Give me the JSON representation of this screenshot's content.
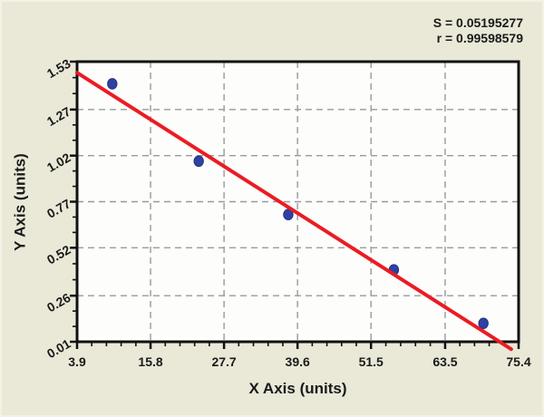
{
  "stats_annotation": {
    "s_line": "S = 0.05195277",
    "r_line": "r = 0.99598579"
  },
  "chart_data": {
    "type": "scatter",
    "title": "",
    "xlabel": "X Axis (units)",
    "ylabel": "Y Axis (units)",
    "xlim": [
      3.9,
      75.4
    ],
    "ylim": [
      0.01,
      1.53
    ],
    "x_ticks": [
      3.9,
      15.8,
      27.7,
      39.6,
      51.5,
      63.5,
      75.4
    ],
    "y_ticks": [
      0.01,
      0.26,
      0.52,
      0.77,
      1.02,
      1.27,
      1.53
    ],
    "x_minor_subdivisions": 5,
    "y_minor_subdivisions": 3,
    "grid": "dashed",
    "legend": "none",
    "stats": [
      "S = 0.05195277",
      "r = 0.99598579"
    ],
    "points": [
      {
        "x": 9.6,
        "y": 1.41
      },
      {
        "x": 23.6,
        "y": 0.99
      },
      {
        "x": 38.1,
        "y": 0.7
      },
      {
        "x": 55.2,
        "y": 0.4
      },
      {
        "x": 69.7,
        "y": 0.11
      }
    ],
    "regression_line": {
      "x1": 3.9,
      "y1": 1.47,
      "x2": 74.2,
      "y2": -0.03
    },
    "colors": {
      "page_background": "#eae8d7",
      "plot_background": "#fdfdfc",
      "frame": "#111111",
      "grid": "#999999",
      "regression_line": "#ea1c24",
      "point_fill": "#2f41a5",
      "point_stroke": "#25337f",
      "text": "#1a1a1a"
    }
  }
}
